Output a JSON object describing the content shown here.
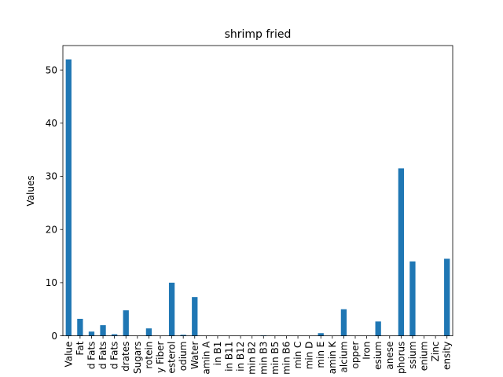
{
  "chart_data": {
    "type": "bar",
    "title": "shrimp fried",
    "xlabel": "",
    "ylabel": "Values",
    "ylim": [
      0,
      54.6
    ],
    "yticks": [
      0,
      10,
      20,
      30,
      40,
      50
    ],
    "grid": false,
    "legend": "none",
    "bar_color": "#1f77b4",
    "categories": [
      "Value",
      "Fat",
      "d Fats",
      "d Fats",
      "d Fats",
      "drates",
      "Sugars",
      "rotein",
      "y Fiber",
      "esterol",
      "odium",
      "Water",
      "amin A",
      "in B1",
      "in B11",
      "in B12",
      "min B2",
      "min B3",
      "min B5",
      "min B6",
      "min C",
      "min D",
      "min E",
      "amin K",
      "alcium",
      "opper",
      "Iron",
      "esium",
      "anese",
      "phorus",
      "ssium",
      "enium",
      "Zinc",
      "ensity"
    ],
    "values": [
      52.0,
      3.2,
      0.8,
      2.0,
      0.3,
      4.8,
      0.0,
      1.4,
      0.0,
      10.0,
      0.2,
      7.3,
      0.0,
      0.0,
      0.0,
      0.0,
      0.0,
      0.1,
      0.0,
      0.0,
      0.0,
      0.0,
      0.5,
      0.0,
      5.0,
      0.0,
      0.0,
      2.7,
      0.0,
      31.5,
      14.0,
      0.0,
      0.0,
      14.5
    ]
  }
}
